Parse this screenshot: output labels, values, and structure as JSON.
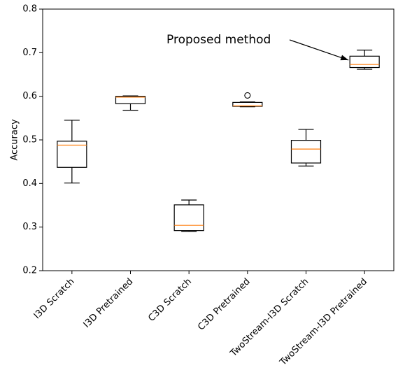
{
  "chart_data": {
    "type": "box",
    "title": "",
    "xlabel": "",
    "ylabel": "Accuracy",
    "ylim": [
      0.2,
      0.8
    ],
    "yticks": [
      "0.2",
      "0.3",
      "0.4",
      "0.5",
      "0.6",
      "0.7",
      "0.8"
    ],
    "grid": false,
    "categories": [
      "I3D Scratch",
      "I3D Pretrained",
      "C3D Scratch",
      "C3D Pretrained",
      "TwoStream-I3D Scratch",
      "TwoStream-I3D Pretrained"
    ],
    "boxes": [
      {
        "label": "I3D Scratch",
        "whislo": 0.401,
        "q1": 0.437,
        "med": 0.488,
        "q3": 0.497,
        "whishi": 0.545,
        "fliers": []
      },
      {
        "label": "I3D Pretrained",
        "whislo": 0.568,
        "q1": 0.583,
        "med": 0.598,
        "q3": 0.6,
        "whishi": 0.601,
        "fliers": []
      },
      {
        "label": "C3D Scratch",
        "whislo": 0.29,
        "q1": 0.292,
        "med": 0.304,
        "q3": 0.351,
        "whishi": 0.362,
        "fliers": []
      },
      {
        "label": "C3D Pretrained",
        "whislo": 0.576,
        "q1": 0.577,
        "med": 0.578,
        "q3": 0.586,
        "whishi": 0.587,
        "fliers": [
          0.602
        ]
      },
      {
        "label": "TwoStream-I3D Scratch",
        "whislo": 0.44,
        "q1": 0.447,
        "med": 0.479,
        "q3": 0.499,
        "whishi": 0.524,
        "fliers": []
      },
      {
        "label": "TwoStream-I3D Pretrained",
        "whislo": 0.662,
        "q1": 0.666,
        "med": 0.673,
        "q3": 0.692,
        "whishi": 0.706,
        "fliers": []
      }
    ],
    "annotation": {
      "text": "Proposed method",
      "target_category": "TwoStream-I3D Pretrained",
      "target_value": 0.683
    },
    "colors": {
      "box": "#000000",
      "median": "#ff7f0e",
      "background": "#ffffff"
    }
  }
}
